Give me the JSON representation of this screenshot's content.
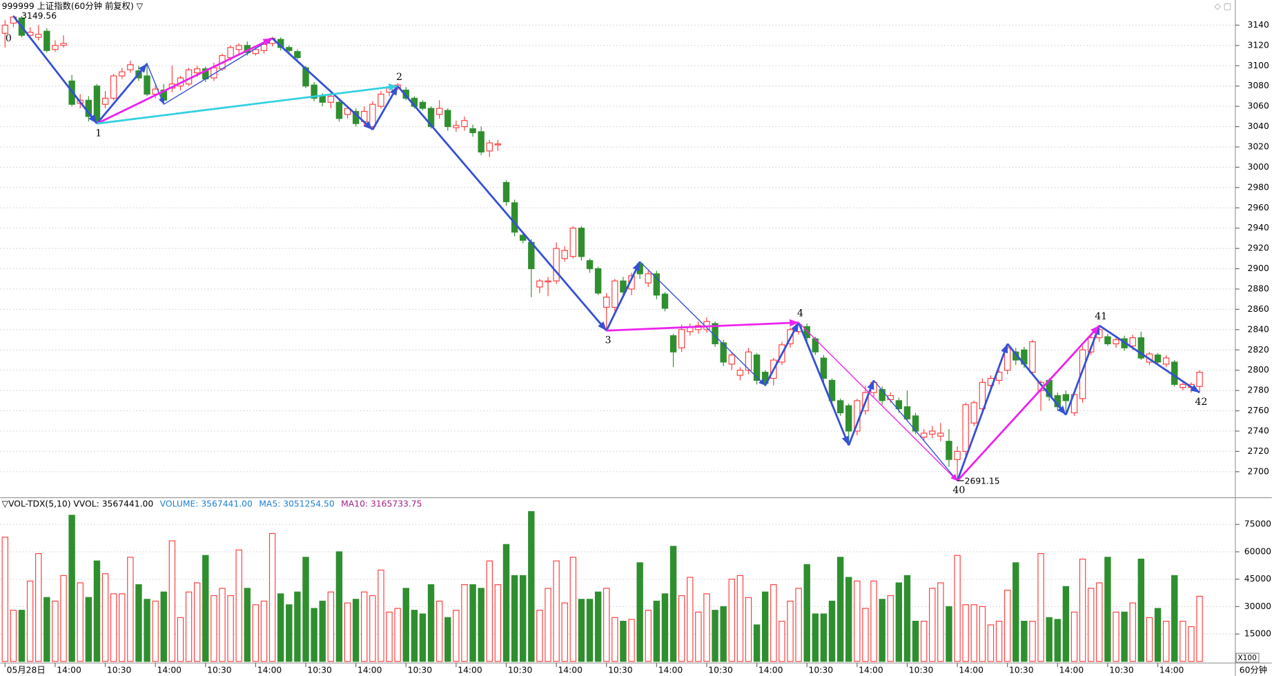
{
  "chart_data": {
    "type": "candlestick",
    "title": "999999 上证指数(60分钟 前复权) ▽",
    "period": "60分钟",
    "volume_unit": "X100",
    "up_color": "#ff3c3c",
    "down_color": "#2f8f2f",
    "grid": true,
    "ylim": [
      2676,
      3152
    ],
    "yticks": [
      2700,
      2720,
      2740,
      2760,
      2780,
      2800,
      2820,
      2840,
      2860,
      2880,
      2900,
      2920,
      2940,
      2960,
      2980,
      3000,
      3020,
      3040,
      3060,
      3080,
      3100,
      3120,
      3140
    ],
    "xticks": [
      {
        "value": 0,
        "label": "05月28日"
      },
      {
        "value": 6,
        "label": "14:00"
      },
      {
        "value": 12,
        "label": "10:30"
      },
      {
        "value": 18,
        "label": "14:00"
      },
      {
        "value": 24,
        "label": "10:30"
      },
      {
        "value": 30,
        "label": "14:00"
      },
      {
        "value": 36,
        "label": "10:30"
      },
      {
        "value": 42,
        "label": "14:00"
      },
      {
        "value": 48,
        "label": "10:30"
      },
      {
        "value": 54,
        "label": "14:00"
      },
      {
        "value": 60,
        "label": "10:30"
      },
      {
        "value": 66,
        "label": "14:00"
      },
      {
        "value": 72,
        "label": "10:30"
      },
      {
        "value": 78,
        "label": "14:00"
      },
      {
        "value": 84,
        "label": "10:30"
      },
      {
        "value": 90,
        "label": "14:00"
      },
      {
        "value": 96,
        "label": "10:30"
      },
      {
        "value": 102,
        "label": "14:00"
      },
      {
        "value": 108,
        "label": "10:30"
      },
      {
        "value": 114,
        "label": "14:00"
      },
      {
        "value": 120,
        "label": "10:30"
      },
      {
        "value": 126,
        "label": "14:00"
      },
      {
        "value": 132,
        "label": "10:30"
      },
      {
        "value": 138,
        "label": "14:00"
      }
    ],
    "open": [
      3132,
      3142,
      3147,
      3130,
      3128,
      3134,
      3116,
      3120,
      3085,
      3063,
      3066,
      3080,
      3062,
      3068,
      3090,
      3096,
      3095,
      3090,
      3072,
      3076,
      3078,
      3080,
      3082,
      3093,
      3097,
      3088,
      3097,
      3108,
      3116,
      3120,
      3112,
      3115,
      3122,
      3126,
      3118,
      3114,
      3098,
      3081,
      3070,
      3064,
      3064,
      3052,
      3055,
      3045,
      3040,
      3060,
      3074,
      3078,
      3076,
      3068,
      3064,
      3058,
      3052,
      3056,
      3039,
      3040,
      3038,
      3035,
      3016,
      3022,
      2985,
      2965,
      2933,
      2926,
      2882,
      2887,
      2888,
      2910,
      2912,
      2940,
      2908,
      2900,
      2862,
      2862,
      2888,
      2880,
      2905,
      2886,
      2895,
      2875,
      2834,
      2822,
      2838,
      2840,
      2840,
      2846,
      2827,
      2806,
      2795,
      2800,
      2815,
      2798,
      2792,
      2808,
      2826,
      2838,
      2843,
      2831,
      2812,
      2790,
      2770,
      2765,
      2740,
      2760,
      2778,
      2781,
      2771,
      2770,
      2764,
      2755,
      2734,
      2737,
      2735,
      2730,
      2712,
      2720,
      2748,
      2762,
      2785,
      2790,
      2800,
      2818,
      2820,
      2798,
      2780,
      2790,
      2775,
      2776,
      2758,
      2772,
      2818,
      2832,
      2833,
      2826,
      2831,
      2824,
      2832,
      2808,
      2815,
      2806,
      2808,
      2783,
      2783,
      2784
    ],
    "high": [
      3145,
      3149.56,
      3149,
      3138,
      3140,
      3137,
      3125,
      3130,
      3091,
      3072,
      3070,
      3082,
      3075,
      3092,
      3098,
      3105,
      3100,
      3103,
      3081,
      3082,
      3100,
      3090,
      3098,
      3100,
      3099,
      3103,
      3112,
      3120,
      3122,
      3124,
      3119,
      3125,
      3128.5,
      3128,
      3120,
      3116,
      3100,
      3084,
      3073,
      3073,
      3067,
      3060,
      3058,
      3060,
      3065,
      3075,
      3080,
      3083,
      3079,
      3070,
      3066,
      3060,
      3066,
      3058,
      3046,
      3050,
      3042,
      3040,
      3027,
      3027,
      2987,
      2968,
      2936,
      2929,
      2890,
      2892,
      2926,
      2922,
      2942,
      2942,
      2910,
      2902,
      2876,
      2890,
      2892,
      2896,
      2907,
      2898,
      2898,
      2877,
      2836,
      2845,
      2846,
      2848,
      2852,
      2848,
      2830,
      2818,
      2803,
      2822,
      2817,
      2800,
      2812,
      2828,
      2842,
      2847,
      2846,
      2833,
      2815,
      2792,
      2772,
      2767,
      2772,
      2785,
      2790,
      2784,
      2778,
      2773,
      2780,
      2758,
      2742,
      2745,
      2748,
      2742,
      2725,
      2768,
      2770,
      2792,
      2795,
      2800,
      2826,
      2822,
      2823,
      2830,
      2790,
      2792,
      2778,
      2780,
      2779,
      2824,
      2834,
      2844,
      2836,
      2833,
      2834,
      2835,
      2838,
      2818,
      2817,
      2815,
      2810,
      2788,
      2788,
      2800
    ],
    "low": [
      3118,
      3138,
      3128,
      3127,
      3125,
      3113,
      3114,
      3118,
      3060,
      3058,
      3045,
      3043,
      3058,
      3066,
      3087,
      3093,
      3085,
      3070,
      3068,
      3062,
      3074,
      3076,
      3080,
      3089,
      3084,
      3085,
      3095,
      3105,
      3112,
      3110,
      3110,
      3112,
      3119,
      3115,
      3112,
      3106,
      3078,
      3065,
      3060,
      3058,
      3045,
      3048,
      3040,
      3040,
      3037,
      3058,
      3070,
      3076,
      3066,
      3058,
      3056,
      3038,
      3048,
      3036,
      3035,
      3036,
      3030,
      3012,
      3010,
      3016,
      2962,
      2932,
      2925,
      2872,
      2876,
      2873,
      2885,
      2907,
      2910,
      2908,
      2896,
      2874,
      2839,
      2858,
      2873,
      2874,
      2890,
      2882,
      2870,
      2858,
      2803,
      2818,
      2834,
      2836,
      2837,
      2823,
      2804,
      2800,
      2790,
      2796,
      2786,
      2784,
      2785,
      2805,
      2822,
      2835,
      2828,
      2815,
      2788,
      2766,
      2755,
      2726,
      2736,
      2756,
      2774,
      2766,
      2768,
      2758,
      2750,
      2737,
      2730,
      2733,
      2730,
      2705,
      2691.15,
      2716,
      2745,
      2758,
      2780,
      2786,
      2796,
      2805,
      2802,
      2795,
      2760,
      2770,
      2760,
      2756,
      2755,
      2768,
      2815,
      2828,
      2824,
      2822,
      2819,
      2820,
      2810,
      2805,
      2805,
      2803,
      2784,
      2780,
      2778,
      2778
    ],
    "close": [
      3140,
      3148,
      3130,
      3133,
      3131,
      3115,
      3120,
      3122,
      3062,
      3066,
      3050,
      3046,
      3068,
      3090,
      3094,
      3101,
      3088,
      3072,
      3077,
      3066,
      3082,
      3088,
      3096,
      3097,
      3087,
      3098,
      3110,
      3118,
      3120,
      3113,
      3116,
      3121,
      3127,
      3118,
      3115,
      3108,
      3080,
      3068,
      3064,
      3070,
      3048,
      3058,
      3043,
      3055,
      3062,
      3072,
      3078,
      3081,
      3068,
      3060,
      3058,
      3040,
      3058,
      3040,
      3041,
      3046,
      3034,
      3015,
      3024,
      3023,
      2966,
      2936,
      2928,
      2900,
      2888,
      2888,
      2920,
      2918,
      2940,
      2912,
      2900,
      2876,
      2872,
      2888,
      2877,
      2893,
      2895,
      2895,
      2874,
      2861,
      2818,
      2840,
      2842,
      2844,
      2848,
      2826,
      2808,
      2815,
      2800,
      2818,
      2790,
      2787,
      2810,
      2825,
      2840,
      2845,
      2832,
      2818,
      2792,
      2770,
      2758,
      2740,
      2770,
      2778,
      2788,
      2770,
      2775,
      2762,
      2752,
      2740,
      2738,
      2740,
      2738,
      2712,
      2720,
      2766,
      2768,
      2788,
      2792,
      2798,
      2822,
      2810,
      2806,
      2828,
      2788,
      2774,
      2764,
      2770,
      2776,
      2820,
      2832,
      2840,
      2826,
      2830,
      2822,
      2832,
      2812,
      2816,
      2808,
      2812,
      2786,
      2786,
      2786,
      2798
    ],
    "volume": [
      68000,
      28000,
      28000,
      44000,
      59000,
      35000,
      33000,
      47000,
      80000,
      43000,
      35000,
      55000,
      48000,
      37000,
      37000,
      57000,
      42000,
      34000,
      33000,
      38000,
      66000,
      24000,
      38000,
      43000,
      58000,
      36000,
      40000,
      36000,
      61000,
      40000,
      31000,
      33000,
      70000,
      37000,
      31000,
      38000,
      57000,
      29000,
      33000,
      38000,
      60000,
      32000,
      34000,
      38000,
      36000,
      50000,
      27000,
      29000,
      40000,
      28000,
      26000,
      42000,
      33000,
      24000,
      28000,
      42000,
      42000,
      40000,
      55000,
      42000,
      64000,
      47000,
      47000,
      82000,
      28000,
      40000,
      55000,
      32000,
      57000,
      34000,
      34000,
      38000,
      40000,
      24000,
      22000,
      23000,
      54000,
      28000,
      33000,
      37000,
      63000,
      36000,
      46000,
      27000,
      37000,
      28000,
      30000,
      45000,
      47000,
      35000,
      20000,
      38000,
      42000,
      22000,
      33000,
      40000,
      53000,
      26000,
      26000,
      33000,
      57000,
      46000,
      44000,
      29000,
      44000,
      34000,
      36000,
      43000,
      47000,
      22000,
      22000,
      40000,
      43000,
      30000,
      58000,
      31000,
      31000,
      30000,
      20000,
      22000,
      39000,
      54000,
      22000,
      22000,
      59000,
      24000,
      23000,
      41000,
      27000,
      56000,
      40000,
      43000,
      57000,
      27000,
      27000,
      32000,
      56000,
      24000,
      29000,
      22000,
      47000,
      22000,
      19000,
      35674.41
    ],
    "volume_ylim": [
      0,
      83400
    ],
    "volume_yticks": [
      15000,
      30000,
      45000,
      60000,
      75000
    ],
    "volume_header": [
      {
        "text": "▽VOL-TDX(5,10) VVOL: 3567441.00",
        "color": "#000000"
      },
      {
        "text": "VOLUME: 3567441.00",
        "color": "#1e7fd0"
      },
      {
        "text": "MA5: 3051254.50",
        "color": "#1e7fd0"
      },
      {
        "text": "MA10: 3165733.75",
        "color": "#a0208a"
      }
    ],
    "segments": [
      {
        "from": [
          1,
          3149
        ],
        "to": [
          11,
          3043
        ],
        "color": "#3550d6",
        "style": "thick"
      },
      {
        "from": [
          11,
          3043
        ],
        "to": [
          17,
          3102
        ],
        "color": "#3550d6",
        "style": "thick"
      },
      {
        "from": [
          17,
          3102
        ],
        "to": [
          19,
          3062
        ],
        "color": "#3550d6",
        "style": "thin"
      },
      {
        "from": [
          19,
          3062
        ],
        "to": [
          32,
          3127
        ],
        "color": "#3550d6",
        "style": "thin"
      },
      {
        "from": [
          11,
          3043
        ],
        "to": [
          32,
          3127
        ],
        "color": "#ee22ee",
        "style": "thick"
      },
      {
        "from": [
          32,
          3127
        ],
        "to": [
          44,
          3037
        ],
        "color": "#3550d6",
        "style": "thick"
      },
      {
        "from": [
          44,
          3037
        ],
        "to": [
          47,
          3080
        ],
        "color": "#3550d6",
        "style": "thick"
      },
      {
        "from": [
          11,
          3043
        ],
        "to": [
          47,
          3080
        ],
        "color": "#33d0e0",
        "style": "thick"
      },
      {
        "from": [
          47,
          3080
        ],
        "to": [
          72,
          2839
        ],
        "color": "#3550d6",
        "style": "thick"
      },
      {
        "from": [
          72,
          2839
        ],
        "to": [
          76,
          2907
        ],
        "color": "#3550d6",
        "style": "thick"
      },
      {
        "from": [
          76,
          2907
        ],
        "to": [
          91,
          2785
        ],
        "color": "#3550d6",
        "style": "thin"
      },
      {
        "from": [
          91,
          2785
        ],
        "to": [
          95,
          2847
        ],
        "color": "#3550d6",
        "style": "thick"
      },
      {
        "from": [
          72,
          2839
        ],
        "to": [
          95,
          2847
        ],
        "color": "#ee22ee",
        "style": "thick"
      },
      {
        "from": [
          95,
          2847
        ],
        "to": [
          101,
          2726
        ],
        "color": "#3550d6",
        "style": "thick"
      },
      {
        "from": [
          101,
          2726
        ],
        "to": [
          104,
          2790
        ],
        "color": "#3550d6",
        "style": "thick"
      },
      {
        "from": [
          104,
          2790
        ],
        "to": [
          114,
          2691
        ],
        "color": "#3550d6",
        "style": "thin"
      },
      {
        "from": [
          95,
          2847
        ],
        "to": [
          114,
          2691
        ],
        "color": "#ee22ee",
        "style": "thin"
      },
      {
        "from": [
          114,
          2691
        ],
        "to": [
          120,
          2826
        ],
        "color": "#3550d6",
        "style": "thick"
      },
      {
        "from": [
          120,
          2826
        ],
        "to": [
          127,
          2756
        ],
        "color": "#3550d6",
        "style": "thick"
      },
      {
        "from": [
          127,
          2756
        ],
        "to": [
          131,
          2844
        ],
        "color": "#3550d6",
        "style": "thick"
      },
      {
        "from": [
          114,
          2691
        ],
        "to": [
          131,
          2844
        ],
        "color": "#ee22ee",
        "style": "thick"
      },
      {
        "from": [
          131,
          2844
        ],
        "to": [
          143,
          2778
        ],
        "color": "#3550d6",
        "style": "thick"
      }
    ],
    "wave_labels": [
      {
        "label": "0",
        "index": 1,
        "value": 3149,
        "side": "below"
      },
      {
        "label": "1",
        "index": 11,
        "value": 3043,
        "side": "below"
      },
      {
        "label": "2",
        "index": 47,
        "value": 3080,
        "side": "above"
      },
      {
        "label": "3",
        "index": 72,
        "value": 2839,
        "side": "below"
      },
      {
        "label": "4",
        "index": 95,
        "value": 2847,
        "side": "above"
      },
      {
        "label": "40",
        "index": 114,
        "value": 2691,
        "side": "below"
      },
      {
        "label": "41",
        "index": 131,
        "value": 2844,
        "side": "above"
      },
      {
        "label": "42",
        "index": 143,
        "value": 2778,
        "side": "below"
      }
    ]
  }
}
